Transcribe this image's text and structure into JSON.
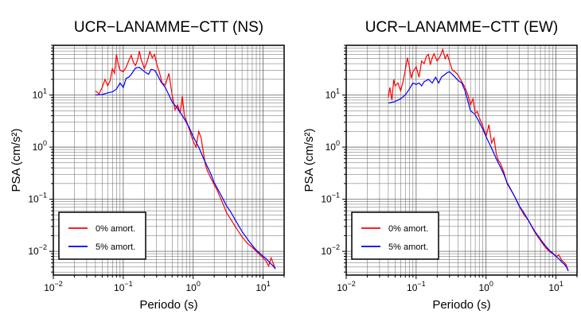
{
  "chart_data": [
    {
      "type": "line",
      "title": "UCR−LANAMME−CTT (NS)",
      "xlabel": "Periodo (s)",
      "ylabel": "PSA (cm/s²)",
      "xscale": "log",
      "yscale": "log",
      "xlim": [
        0.01,
        20
      ],
      "ylim": [
        0.0035,
        90
      ],
      "grid": true,
      "legend_position": "bottom-left",
      "series": [
        {
          "name": "0% amort.",
          "color": "#ff0000",
          "x": [
            0.04,
            0.045,
            0.05,
            0.055,
            0.06,
            0.065,
            0.07,
            0.075,
            0.08,
            0.085,
            0.09,
            0.1,
            0.11,
            0.12,
            0.13,
            0.14,
            0.15,
            0.16,
            0.17,
            0.18,
            0.19,
            0.2,
            0.22,
            0.24,
            0.26,
            0.28,
            0.3,
            0.33,
            0.36,
            0.4,
            0.45,
            0.5,
            0.55,
            0.6,
            0.65,
            0.7,
            0.75,
            0.8,
            0.9,
            1.0,
            1.1,
            1.2,
            1.3,
            1.4,
            1.5,
            1.6,
            1.8,
            2.0,
            2.2,
            2.5,
            2.8,
            3.0,
            3.5,
            4.0,
            5.0,
            6.0,
            7.0,
            8.0,
            9.0,
            10.0,
            11.0,
            12.0,
            13.0,
            14.0,
            15.0
          ],
          "y": [
            12,
            10.5,
            14,
            20,
            15,
            19,
            32,
            26,
            60,
            38,
            30,
            28,
            34,
            46,
            58,
            42,
            37,
            47,
            70,
            48,
            40,
            32,
            44,
            68,
            52,
            60,
            40,
            27,
            17,
            15.5,
            26,
            10,
            5.2,
            6.5,
            4.5,
            9.5,
            4.0,
            3.2,
            2.0,
            1.3,
            1.0,
            2.0,
            1.5,
            0.8,
            0.45,
            0.35,
            0.25,
            0.19,
            0.15,
            0.1,
            0.07,
            0.055,
            0.04,
            0.03,
            0.019,
            0.014,
            0.012,
            0.01,
            0.0085,
            0.0075,
            0.0065,
            0.0052,
            0.0075,
            0.0058,
            0.0046
          ]
        },
        {
          "name": "5% amort.",
          "color": "#0000ff",
          "x": [
            0.04,
            0.05,
            0.06,
            0.07,
            0.08,
            0.09,
            0.1,
            0.11,
            0.12,
            0.13,
            0.15,
            0.17,
            0.19,
            0.21,
            0.23,
            0.25,
            0.28,
            0.3,
            0.35,
            0.4,
            0.45,
            0.5,
            0.6,
            0.7,
            0.8,
            0.9,
            1.0,
            1.2,
            1.4,
            1.6,
            1.8,
            2.0,
            2.5,
            3.0,
            3.5,
            4.0,
            5.0,
            6.0,
            7.0,
            8.0,
            9.0,
            10.0,
            11.0,
            12.0,
            13.0,
            14.0,
            15.0
          ],
          "y": [
            10,
            10.2,
            11,
            11.5,
            13,
            17,
            14,
            21,
            22,
            25,
            33,
            34,
            30,
            27,
            25,
            31,
            30,
            26,
            17.5,
            14,
            10,
            7.4,
            5.5,
            4.0,
            3.0,
            2.2,
            1.6,
            1.0,
            0.62,
            0.42,
            0.3,
            0.21,
            0.12,
            0.075,
            0.055,
            0.04,
            0.024,
            0.017,
            0.013,
            0.0105,
            0.0092,
            0.008,
            0.0073,
            0.0064,
            0.0057,
            0.0052,
            0.0046
          ]
        }
      ]
    },
    {
      "type": "line",
      "title": "UCR−LANAMME−CTT (EW)",
      "xlabel": "Periodo (s)",
      "ylabel": "PSA (cm/s²)",
      "xscale": "log",
      "yscale": "log",
      "xlim": [
        0.01,
        20
      ],
      "ylim": [
        0.0035,
        90
      ],
      "grid": true,
      "legend_position": "bottom-left",
      "series": [
        {
          "name": "0% amort.",
          "color": "#ff0000",
          "x": [
            0.04,
            0.042,
            0.045,
            0.048,
            0.05,
            0.055,
            0.06,
            0.065,
            0.07,
            0.075,
            0.08,
            0.085,
            0.09,
            0.1,
            0.11,
            0.12,
            0.13,
            0.14,
            0.15,
            0.16,
            0.17,
            0.18,
            0.2,
            0.22,
            0.24,
            0.26,
            0.28,
            0.3,
            0.33,
            0.36,
            0.4,
            0.45,
            0.5,
            0.55,
            0.6,
            0.65,
            0.7,
            0.75,
            0.8,
            0.9,
            1.0,
            1.1,
            1.2,
            1.3,
            1.4,
            1.5,
            1.6,
            1.8,
            2.0,
            2.5,
            3.0,
            3.5,
            4.0,
            5.0,
            6.0,
            7.0,
            8.0,
            9.0,
            10.0,
            11.0,
            12.0,
            13.0,
            14.0,
            15.0
          ],
          "y": [
            9,
            14,
            8,
            20,
            15,
            17,
            12,
            18,
            30,
            52,
            35,
            21,
            28,
            35,
            22,
            45,
            40,
            55,
            60,
            38,
            52,
            62,
            45,
            55,
            75,
            50,
            60,
            44,
            30,
            28,
            24,
            18,
            14,
            10,
            6.5,
            8.5,
            4.5,
            4.8,
            3.7,
            2.5,
            1.6,
            2.7,
            1.2,
            1.5,
            0.75,
            0.55,
            0.5,
            0.33,
            0.2,
            0.12,
            0.072,
            0.05,
            0.04,
            0.023,
            0.016,
            0.012,
            0.01,
            0.009,
            0.008,
            0.0085,
            0.0068,
            0.0062,
            0.0055,
            0.0042
          ]
        },
        {
          "name": "5% amort.",
          "color": "#0000ff",
          "x": [
            0.04,
            0.05,
            0.06,
            0.07,
            0.08,
            0.09,
            0.1,
            0.11,
            0.12,
            0.13,
            0.15,
            0.17,
            0.19,
            0.21,
            0.23,
            0.25,
            0.28,
            0.3,
            0.35,
            0.4,
            0.45,
            0.5,
            0.6,
            0.7,
            0.8,
            0.9,
            1.0,
            1.2,
            1.4,
            1.6,
            1.8,
            2.0,
            2.5,
            3.0,
            3.5,
            4.0,
            5.0,
            6.0,
            7.0,
            8.0,
            9.0,
            10.0,
            11.0,
            12.0,
            13.0,
            14.0,
            15.0
          ],
          "y": [
            7,
            7.5,
            8.5,
            10,
            13,
            17,
            16,
            17,
            15,
            18,
            20,
            17,
            22,
            17,
            22,
            24,
            27,
            28,
            23,
            19,
            17,
            12,
            5,
            4.2,
            3,
            2.2,
            1.6,
            0.95,
            0.6,
            0.42,
            0.3,
            0.21,
            0.12,
            0.074,
            0.054,
            0.04,
            0.024,
            0.017,
            0.013,
            0.0105,
            0.0092,
            0.008,
            0.0072,
            0.0063,
            0.0057,
            0.0051,
            0.0042
          ]
        }
      ]
    }
  ]
}
